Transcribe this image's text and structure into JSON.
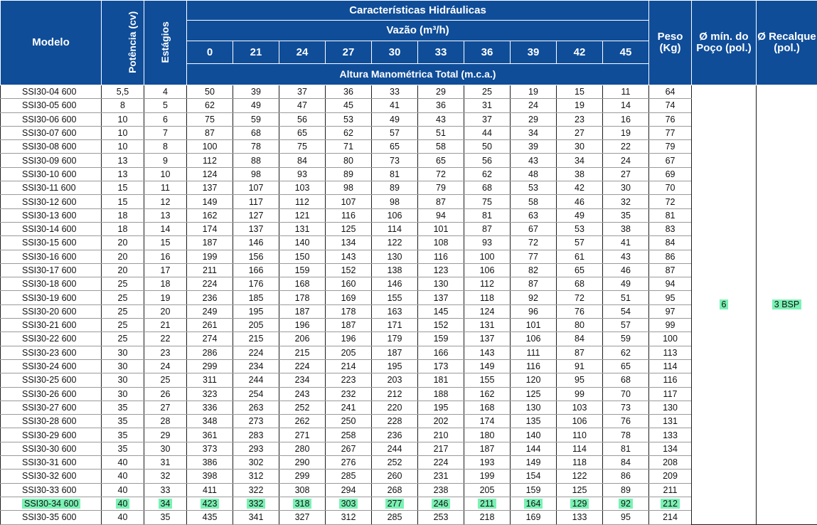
{
  "header": {
    "modelo": "Modelo",
    "potencia": "Potência (cv)",
    "estagios": "Estágios",
    "caracteristicas": "Características Hidráulicas",
    "vazao": "Vazão (m³/h)",
    "flows": [
      "0",
      "21",
      "24",
      "27",
      "30",
      "33",
      "36",
      "39",
      "42",
      "45"
    ],
    "altura": "Altura Manométrica Total (m.c.a.)",
    "peso": "Peso (Kg)",
    "poco": "Ø mín. do Poço (pol.)",
    "recalque": "Ø Recalque (pol.)"
  },
  "rows": [
    {
      "modelo": "SSI30-04 600",
      "potencia": "5,5",
      "estagios": "4",
      "heads": [
        "50",
        "39",
        "37",
        "36",
        "33",
        "29",
        "25",
        "19",
        "15",
        "11"
      ],
      "peso": "64"
    },
    {
      "modelo": "SSI30-05 600",
      "potencia": "8",
      "estagios": "5",
      "heads": [
        "62",
        "49",
        "47",
        "45",
        "41",
        "36",
        "31",
        "24",
        "19",
        "14"
      ],
      "peso": "74"
    },
    {
      "modelo": "SSI30-06 600",
      "potencia": "10",
      "estagios": "6",
      "heads": [
        "75",
        "59",
        "56",
        "53",
        "49",
        "43",
        "37",
        "29",
        "23",
        "16"
      ],
      "peso": "76"
    },
    {
      "modelo": "SSI30-07 600",
      "potencia": "10",
      "estagios": "7",
      "heads": [
        "87",
        "68",
        "65",
        "62",
        "57",
        "51",
        "44",
        "34",
        "27",
        "19"
      ],
      "peso": "77"
    },
    {
      "modelo": "SSI30-08 600",
      "potencia": "10",
      "estagios": "8",
      "heads": [
        "100",
        "78",
        "75",
        "71",
        "65",
        "58",
        "50",
        "39",
        "30",
        "22"
      ],
      "peso": "79"
    },
    {
      "modelo": "SSI30-09 600",
      "potencia": "13",
      "estagios": "9",
      "heads": [
        "112",
        "88",
        "84",
        "80",
        "73",
        "65",
        "56",
        "43",
        "34",
        "24"
      ],
      "peso": "67"
    },
    {
      "modelo": "SSI30-10 600",
      "potencia": "13",
      "estagios": "10",
      "heads": [
        "124",
        "98",
        "93",
        "89",
        "81",
        "72",
        "62",
        "48",
        "38",
        "27"
      ],
      "peso": "69"
    },
    {
      "modelo": "SSI30-11 600",
      "potencia": "15",
      "estagios": "11",
      "heads": [
        "137",
        "107",
        "103",
        "98",
        "89",
        "79",
        "68",
        "53",
        "42",
        "30"
      ],
      "peso": "70"
    },
    {
      "modelo": "SSI30-12 600",
      "potencia": "15",
      "estagios": "12",
      "heads": [
        "149",
        "117",
        "112",
        "107",
        "98",
        "87",
        "75",
        "58",
        "46",
        "32"
      ],
      "peso": "72"
    },
    {
      "modelo": "SSI30-13 600",
      "potencia": "18",
      "estagios": "13",
      "heads": [
        "162",
        "127",
        "121",
        "116",
        "106",
        "94",
        "81",
        "63",
        "49",
        "35"
      ],
      "peso": "81"
    },
    {
      "modelo": "SSI30-14 600",
      "potencia": "18",
      "estagios": "14",
      "heads": [
        "174",
        "137",
        "131",
        "125",
        "114",
        "101",
        "87",
        "67",
        "53",
        "38"
      ],
      "peso": "83"
    },
    {
      "modelo": "SSI30-15 600",
      "potencia": "20",
      "estagios": "15",
      "heads": [
        "187",
        "146",
        "140",
        "134",
        "122",
        "108",
        "93",
        "72",
        "57",
        "41"
      ],
      "peso": "84"
    },
    {
      "modelo": "SSI30-16 600",
      "potencia": "20",
      "estagios": "16",
      "heads": [
        "199",
        "156",
        "150",
        "143",
        "130",
        "116",
        "100",
        "77",
        "61",
        "43"
      ],
      "peso": "86"
    },
    {
      "modelo": "SSI30-17 600",
      "potencia": "20",
      "estagios": "17",
      "heads": [
        "211",
        "166",
        "159",
        "152",
        "138",
        "123",
        "106",
        "82",
        "65",
        "46"
      ],
      "peso": "87"
    },
    {
      "modelo": "SSI30-18 600",
      "potencia": "25",
      "estagios": "18",
      "heads": [
        "224",
        "176",
        "168",
        "160",
        "146",
        "130",
        "112",
        "87",
        "68",
        "49"
      ],
      "peso": "94"
    },
    {
      "modelo": "SSI30-19 600",
      "potencia": "25",
      "estagios": "19",
      "heads": [
        "236",
        "185",
        "178",
        "169",
        "155",
        "137",
        "118",
        "92",
        "72",
        "51"
      ],
      "peso": "95"
    },
    {
      "modelo": "SSI30-20 600",
      "potencia": "25",
      "estagios": "20",
      "heads": [
        "249",
        "195",
        "187",
        "178",
        "163",
        "145",
        "124",
        "96",
        "76",
        "54"
      ],
      "peso": "97"
    },
    {
      "modelo": "SSI30-21 600",
      "potencia": "25",
      "estagios": "21",
      "heads": [
        "261",
        "205",
        "196",
        "187",
        "171",
        "152",
        "131",
        "101",
        "80",
        "57"
      ],
      "peso": "99"
    },
    {
      "modelo": "SSI30-22 600",
      "potencia": "25",
      "estagios": "22",
      "heads": [
        "274",
        "215",
        "206",
        "196",
        "179",
        "159",
        "137",
        "106",
        "84",
        "59"
      ],
      "peso": "100"
    },
    {
      "modelo": "SSI30-23 600",
      "potencia": "30",
      "estagios": "23",
      "heads": [
        "286",
        "224",
        "215",
        "205",
        "187",
        "166",
        "143",
        "111",
        "87",
        "62"
      ],
      "peso": "113"
    },
    {
      "modelo": "SSI30-24 600",
      "potencia": "30",
      "estagios": "24",
      "heads": [
        "299",
        "234",
        "224",
        "214",
        "195",
        "173",
        "149",
        "116",
        "91",
        "65"
      ],
      "peso": "114"
    },
    {
      "modelo": "SSI30-25 600",
      "potencia": "30",
      "estagios": "25",
      "heads": [
        "311",
        "244",
        "234",
        "223",
        "203",
        "181",
        "155",
        "120",
        "95",
        "68"
      ],
      "peso": "116"
    },
    {
      "modelo": "SSI30-26 600",
      "potencia": "30",
      "estagios": "26",
      "heads": [
        "323",
        "254",
        "243",
        "232",
        "212",
        "188",
        "162",
        "125",
        "99",
        "70"
      ],
      "peso": "117"
    },
    {
      "modelo": "SSI30-27 600",
      "potencia": "35",
      "estagios": "27",
      "heads": [
        "336",
        "263",
        "252",
        "241",
        "220",
        "195",
        "168",
        "130",
        "103",
        "73"
      ],
      "peso": "130"
    },
    {
      "modelo": "SSI30-28 600",
      "potencia": "35",
      "estagios": "28",
      "heads": [
        "348",
        "273",
        "262",
        "250",
        "228",
        "202",
        "174",
        "135",
        "106",
        "76"
      ],
      "peso": "131"
    },
    {
      "modelo": "SSI30-29 600",
      "potencia": "35",
      "estagios": "29",
      "heads": [
        "361",
        "283",
        "271",
        "258",
        "236",
        "210",
        "180",
        "140",
        "110",
        "78"
      ],
      "peso": "133"
    },
    {
      "modelo": "SSI30-30 600",
      "potencia": "35",
      "estagios": "30",
      "heads": [
        "373",
        "293",
        "280",
        "267",
        "244",
        "217",
        "187",
        "144",
        "114",
        "81"
      ],
      "peso": "134"
    },
    {
      "modelo": "SSI30-31 600",
      "potencia": "40",
      "estagios": "31",
      "heads": [
        "386",
        "302",
        "290",
        "276",
        "252",
        "224",
        "193",
        "149",
        "118",
        "84"
      ],
      "peso": "208"
    },
    {
      "modelo": "SSI30-32 600",
      "potencia": "40",
      "estagios": "32",
      "heads": [
        "398",
        "312",
        "299",
        "285",
        "260",
        "231",
        "199",
        "154",
        "122",
        "86"
      ],
      "peso": "209"
    },
    {
      "modelo": "SSI30-33 600",
      "potencia": "40",
      "estagios": "33",
      "heads": [
        "411",
        "322",
        "308",
        "294",
        "268",
        "238",
        "205",
        "159",
        "125",
        "89"
      ],
      "peso": "211"
    },
    {
      "modelo": "SSI30-34 600",
      "potencia": "40",
      "estagios": "34",
      "heads": [
        "423",
        "332",
        "318",
        "303",
        "277",
        "246",
        "211",
        "164",
        "129",
        "92"
      ],
      "peso": "212",
      "highlight": true
    },
    {
      "modelo": "SSI30-35 600",
      "potencia": "40",
      "estagios": "35",
      "heads": [
        "435",
        "341",
        "327",
        "312",
        "285",
        "253",
        "218",
        "169",
        "133",
        "95"
      ],
      "peso": "214"
    }
  ],
  "shared": {
    "poco": "6",
    "recalque": "3 BSP"
  },
  "colors": {
    "header_bg": "#0f4d99",
    "highlight": "#7af2b4"
  }
}
